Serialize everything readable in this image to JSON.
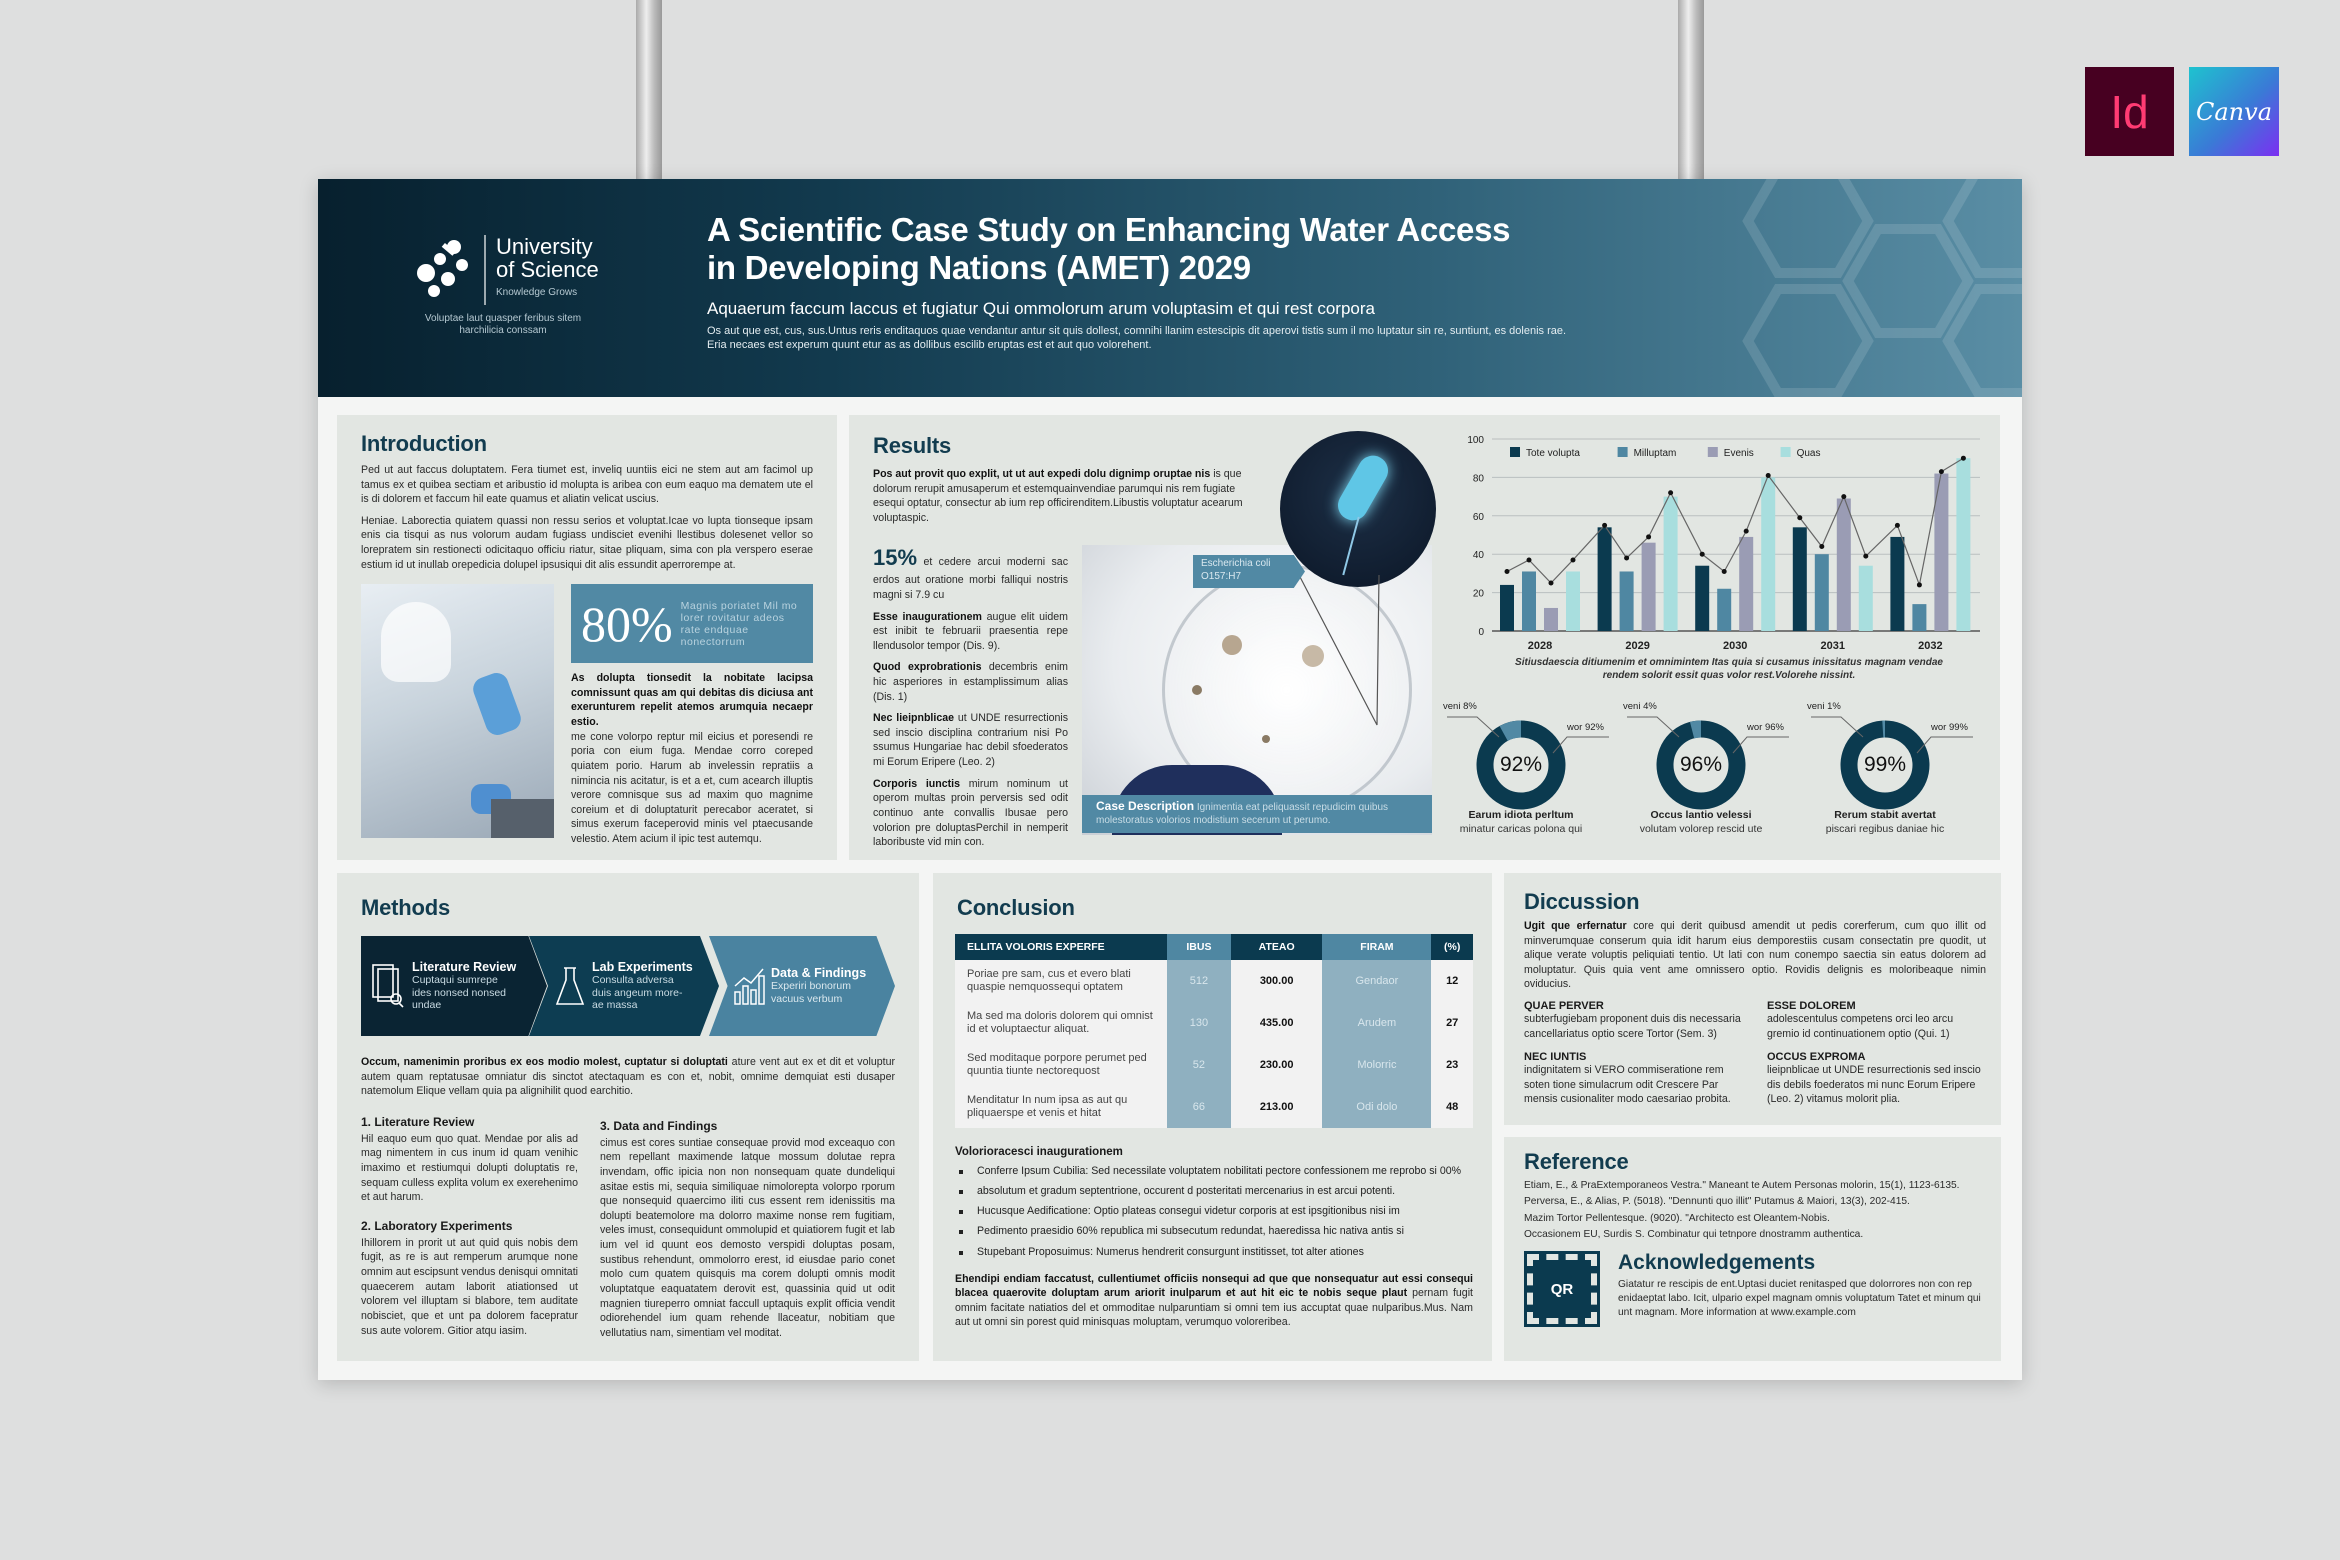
{
  "header": {
    "logo": {
      "line1": "University",
      "line2": "of Science",
      "tagline": "Knowledge Grows",
      "motto": "Voluptae laut quasper feribus sitem harchilicia conssam"
    },
    "title_line1": "A Scientific Case Study on Enhancing Water Access",
    "title_line2": "in Developing Nations (AMET) 2029",
    "subtitle": "Aquaerum faccum laccus et fugiatur Qui ommolorum arum voluptasim et qui rest corpora",
    "description": "Os aut que est, cus, sus.Untus reris enditaquos quae vendantur antur sit quis dollest, comnihi llanim estescipis dit aperovi tistis sum il mo luptatur sin re, suntiunt, es dolenis rae. Eria necaes est experum quunt etur as as dollibus escilib eruptas est et aut quo volorehent."
  },
  "badges": {
    "indesign": "Id",
    "canva": "Canva",
    "colors": {
      "indesign_bg": "#470021",
      "indesign_fg": "#ff3b73"
    }
  },
  "colors": {
    "navy": "#0b3a4f",
    "teal": "#4f87a2",
    "gray_purple": "#9a9cb4",
    "light_cyan": "#a8dede",
    "heading": "#123c4f"
  },
  "introduction": {
    "title": "Introduction",
    "para1": "Ped ut aut faccus doluptatem. Fera tiumet est, inveliq uuntiis eici ne stem aut am facimol up tamus ex et quibea sectiam et aribustio id molupta is aribea con eum eaquo ma dematem ute el is di dolorem et faccum hil eate quamus et aliatin velicat uscius.",
    "para2": "Heniae. Laborectia quiatem quassi non ressu serios et voluptat.Icae vo lupta tionseque ipsam enis cia tisqui as nus volorum audam fugiass undisciet evenihi llestibus dolesenet vellor so lorepratem sin restionecti odicitaquo officiu riatur, sitae pliquam, sima con pla verspero eserae estium id ut inullab orepedicia dolupel ipsusiqui dit alis essundit aperrorempe at.",
    "stat_value": "80%",
    "stat_text": "Magnis poriatet Mil mo lorer rovitatur adeos rate endquae nonectorrum",
    "bold_text": "As dolupta tionsedit la nobitate lacipsa comnissunt quas am qui debitas dis diciusa ant exerunturem repelit atemos arumquia necaepr estio.",
    "body_text": "me cone volorpo reptur mil eicius et poresendi re poria con eium fuga. Mendae corro coreped quiatem porio. Harum ab invelessin repratiis a nimincia nis acitatur, is et a et, cum acearch illuptis verore comnisque sus ad maxim quo magnime coreium et di doluptaturit perecabor aceratet, si simus exerum faceperovid minis vel ptaecusande velestio. Atem acium il ipic test autemqu."
  },
  "results": {
    "title": "Results",
    "lead_bold": "Pos aut provit quo explit, ut ut aut expedi dolu dignimp oruptae nis",
    "lead_text": " is que dolorum rerupit amusaperum et estemquainvendiae parumqui nis rem fugiate esequi optatur, consectur ab ium rep officirenditem.Libustis voluptatur acearum voluptaspic.",
    "stat_value": "15%",
    "stat_text": " et cedere arcui moderni sac erdos aut oratione morbi falliqui nostris magni si 7.9 cu",
    "items": [
      {
        "bold": "Esse inaugurationem",
        "text": " augue elit uidem est inibit te februarii praesentia repe llendusolor tempor (Dis. 9)."
      },
      {
        "bold": "Quod exprobrationis",
        "text": " decembris enim hic asperiores in estamplissimum alias (Dis. 1)"
      },
      {
        "bold": "Nec lieipnblicae",
        "text": " ut UNDE resurrectionis sed inscio disciplina contrarium nisi Po ssumus Hungariae hac debil sfoederatos mi Eorum Eripere (Leo. 2)"
      },
      {
        "bold": "Corporis iunctis",
        "text": " mirum nominum ut operom multas proin perversis sed odit continuo ante convallis Ibusae pero volorion pre doluptasPerchil in nemperit laboribuste vid min con."
      }
    ],
    "specimen_label_line1": "Escherichia coli",
    "specimen_label_line2": "O157:H7",
    "case_title": "Case Description",
    "case_text": " Ignimentia eat peliquassit repudicim quibus molestoratus volorios modistium secerum ut perumo."
  },
  "chart_data": {
    "type": "bar",
    "categories": [
      "2028",
      "2029",
      "2030",
      "2031",
      "2032"
    ],
    "ylim": [
      0,
      100
    ],
    "yticks": [
      "0",
      "20",
      "40",
      "60",
      "80",
      "100"
    ],
    "grid": true,
    "legend_placement": "top-left",
    "series": [
      {
        "name": "Tote volupta",
        "color": "#0b3a4f",
        "values": [
          24,
          54,
          34,
          54,
          49
        ]
      },
      {
        "name": "Milluptam",
        "color": "#4f87a2",
        "values": [
          31,
          31,
          22,
          40,
          14
        ]
      },
      {
        "name": "Evenis",
        "color": "#9a9cb4",
        "values": [
          12,
          46,
          49,
          69,
          82
        ]
      },
      {
        "name": "Quas",
        "color": "#a8dede",
        "values": [
          31,
          70,
          80,
          34,
          90
        ]
      }
    ],
    "line_values": [
      31,
      37,
      25,
      37,
      55,
      38,
      49,
      72,
      40,
      31,
      52,
      81,
      59,
      44,
      70,
      39,
      55,
      24,
      83,
      90
    ],
    "caption": "Sitiusdaescia ditiumenim et omnimintem Itas quia si cusamus inissitatus magnam vendae rendem solorit essit quas volor rest.Volorehe nissint."
  },
  "donuts": [
    {
      "value": 92,
      "center": "92%",
      "small_label": "veni 8%",
      "large_label": "wor 92%",
      "title": "Earum idiota perltum",
      "subtitle": "minatur caricas polona qui"
    },
    {
      "value": 96,
      "center": "96%",
      "small_label": "veni 4%",
      "large_label": "wor 96%",
      "title": "Occus lantio velessi",
      "subtitle": "volutam volorep rescid ute"
    },
    {
      "value": 99,
      "center": "99%",
      "small_label": "veni 1%",
      "large_label": "wor 99%",
      "title": "Rerum stabit avertat",
      "subtitle": "piscari regibus daniae hic"
    }
  ],
  "methods": {
    "title": "Methods",
    "steps": [
      {
        "title": "Literature Review",
        "text": "Cuptaqui sumrepe ides nonsed nonsed undae",
        "icon": "document-search-icon"
      },
      {
        "title": "Lab Experiments",
        "text": "Consulta adversa duis angeum more-ae massa",
        "icon": "flask-icon"
      },
      {
        "title": "Data & Findings",
        "text": "Experiri bonorum vacuus verbum",
        "icon": "bar-chart-icon"
      }
    ],
    "intro_bold": "Occum, namenimin proribus ex eos modio molest, cuptatur si doluptati",
    "intro_text": " ature vent aut ex et dit et voluptur autem quam reptatusae omniatur dis sinctot atectaquam es con et, nobit, omnime demquiat esti dusaper natemolum Elique vellam quia pa alignihilit quod earchitio.",
    "sections": [
      {
        "title": "1. Literature Review",
        "text": "Hil eaquo eum quo quat. Mendae por alis ad mag nimentem in cus inum id quam venihic imaximo et restiumqui dolupti doluptatis re, sequam culless explita volum ex exerehenimo et aut harum."
      },
      {
        "title": "2. Laboratory Experiments",
        "text": "Ihillorem in prorit ut aut quid quis nobis dem fugit, as re is aut remperum arumque none omnim aut escipsunt vendus denisqui omnitati quaecerem autam laborit atiationsed ut volorem vel illuptam si blabore, tem auditate nobisciet, que et unt pa dolorem facepratur sus aute volorem. Gitior atqu iasim."
      },
      {
        "title": "3. Data and Findings",
        "text": "cimus est cores suntiae consequae provid mod exceaquo con nem repellant maximende latque mossum dolutae repra invendam, offic ipicia non non nonsequam quate dundeliqui asitae estis mi, sequia similiquae nimolorepta volorpo rporum que nonsequid quaercimo iliti cus essent rem idenissitis ma dolupti beatemolore ma dolorro maxime nonse rem fugitiam, veles imust, consequidunt ommolupid et quiatiorem fugit et lab ium vel id quunt eos demosto verspidi doluptas posam, sustibus rehendunt, ommolorro erest, id eiusdae pario conet molo cum quatem quisquis ma corem dolupti omnis modit voluptatque eaquatatem derovit est, quassinia quid ut odit magnien tiureperro omniat faccull uptaquis explit officia vendit odiorehendel ium quam rehende llaceatur, nobitiam que vellutatius nam, simentiam vel moditat."
      }
    ]
  },
  "conclusion": {
    "title": "Conclusion",
    "table": {
      "headers": [
        "ELLITA VOLORIS EXPERFE",
        "IBUS",
        "ATEAO",
        "FIRAM",
        "(%)"
      ],
      "rows": [
        [
          "Poriae pre sam, cus et evero blati quaspie nemquossequi optatem",
          "512",
          "300.00",
          "Gendaor",
          "12"
        ],
        [
          "Ma sed ma doloris dolorem qui omnist id et voluptaectur aliquat.",
          "130",
          "435.00",
          "Arudem",
          "27"
        ],
        [
          "Sed moditaque porpore perumet ped quuntia tiunte nectorequost",
          "52",
          "230.00",
          "Molorric",
          "23"
        ],
        [
          "Menditatur In num ipsa as aut qu pliquaerspe et venis et hitat",
          "66",
          "213.00",
          "Odi dolo",
          "48"
        ]
      ]
    },
    "list_title": "Volorioracesci inaugurationem",
    "bullets": [
      "Conferre Ipsum Cubilia: Sed necessilate voluptatem nobilitati pectore confessionem me reprobo si 00%",
      "absolutum et gradum septentrione, occurent d posteritati mercenarius in est arcui potenti.",
      "Hucusque Aedificatione: Optio plateas consegui videtur corporis at est ipsgitionibus nisi im",
      "Pedimento praesidio 60% republica mi subsecutum redundat, haeredissa hic nativa antis si",
      "Stupebant Proposuimus: Numerus hendrerit consurgunt institisset, tot alter ationes"
    ],
    "closing_bold": "Ehendipi endiam faccatust, cullentiumet officiis nonsequi ad que que nonsequatur aut essi consequi blacea quaerovite doluptam arum ariorit inulparum et aut hit eic te nobis seque plaut",
    "closing_text": " pernam fugit omnim facitate natiatios del et ommoditae nulparuntiam si omni tem ius accuptat quae nulparibus.Mus. Nam aut ut omni sin porest quid minisquas moluptam, verumquo voloreribea."
  },
  "discussion": {
    "title": "Diccussion",
    "lead_bold": "Ugit que erfernatur",
    "lead_text": " core qui derit quibusd amendit ut pedis corerferum, cum quo illit od minverumquae conserum quia idit harum eius demporestiis cusam consectatin pre quodit, ut alique verate voluptis peliquiati tentio. Ut lati con num conempo saectia sin eatus dolorem ad moluptatur. Quis quia vent ame omnissero optio. Rovidis delignis es moloribeaque nimin oviducius.",
    "items": [
      {
        "title": "QUAE PERVER",
        "text": "subterfugiebam proponent duis dis necessaria cancellariatus optio scere Tortor (Sem. 3)"
      },
      {
        "title": "ESSE DOLOREM",
        "text": "adolescentulus competens orci leo arcu gremio id continuationem optio (Qui. 1)"
      },
      {
        "title": "NEC IUNTIS",
        "text": "indignitatem si VERO commiseratione rem soten tione simulacrum odit Crescere Par mensis cusionaliter modo caesariao probita."
      },
      {
        "title": "OCCUS EXPROMA",
        "text": "lieipnblicae ut UNDE resurrectionis sed inscio dis debils foederatos mi nunc Eorum Eripere (Leo. 2) vitamus molorit plia."
      }
    ]
  },
  "reference": {
    "title": "Reference",
    "items": [
      "Etiam, E., & PraExtemporaneos Vestra.\" Maneant te Autem Personas molorin, 15(1), 1123-6135.",
      "Perversa, E., & Alias, P. (5018). \"Dennunti quo illit\" Putamus & Maiori, 13(3), 202-415.",
      "Mazim Tortor Pellentesque. (9020). \"Architecto est Oleantem-Nobis.",
      "Occasionem EU, Surdis S. Combinatur qui tetnpore dnostramm authentica."
    ]
  },
  "acknowledgements": {
    "title": "Acknowledgements",
    "qr_label": "QR",
    "text": "Giatatur re rescipis de ent.Uptasi duciet renitasped que dolorrores non con rep enidaeptat labo. Icit, ulpario expel magnam omnis voluptatum Tatet et minum qui unt magnam. More information at www.example.com"
  }
}
